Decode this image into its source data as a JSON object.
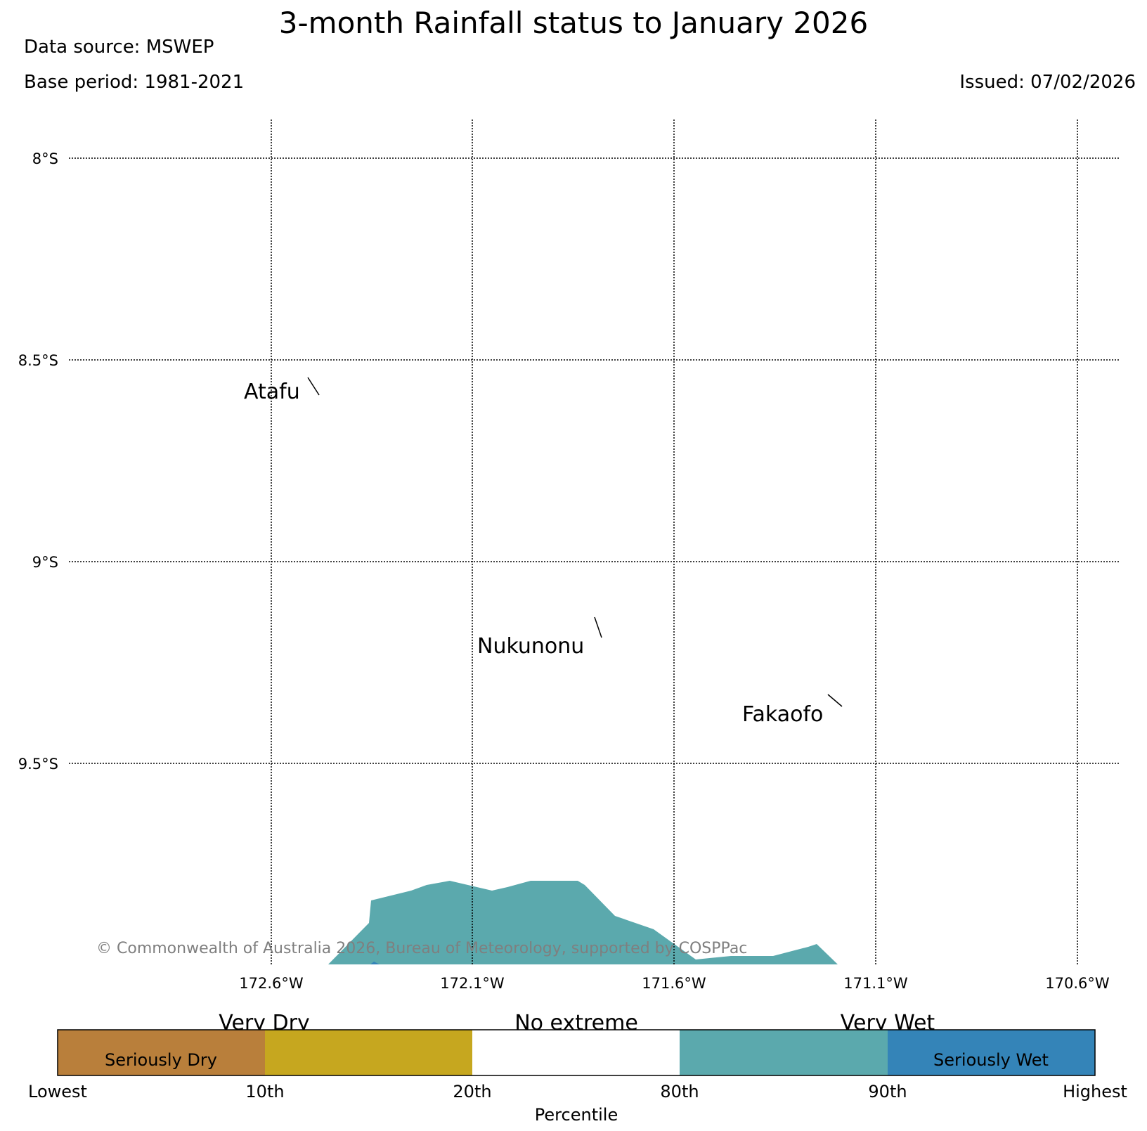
{
  "title": "3-month Rainfall status to January 2026",
  "data_source": "Data source: MSWEP",
  "base_period": "Base period: 1981-2021",
  "issued": "Issued: 07/02/2026",
  "map": {
    "lat_labels": [
      "8°S",
      "8.5°S",
      "9°S",
      "9.5°S"
    ],
    "lon_labels": [
      "172.6°W",
      "172.1°W",
      "171.6°W",
      "171.1°W",
      "170.6°W"
    ],
    "places": [
      "Atafu",
      "Nukunonu",
      "Fakaofo"
    ],
    "copyright": "© Commonwealth of Australia 2026, Bureau of Meteorology, supported by COSPPac",
    "region_category": "Very Wet"
  },
  "legend": {
    "headers": [
      "Very Dry",
      "No extreme",
      "Very Wet"
    ],
    "inner_labels": [
      "Seriously Dry",
      "Seriously Wet"
    ],
    "tick_labels": [
      "Lowest",
      "10th",
      "20th",
      "80th",
      "90th",
      "Highest"
    ],
    "axis_label": "Percentile",
    "colors": [
      "#b97f3b",
      "#c6a71f",
      "#ffffff",
      "#5ba9ad",
      "#3484b8"
    ]
  }
}
